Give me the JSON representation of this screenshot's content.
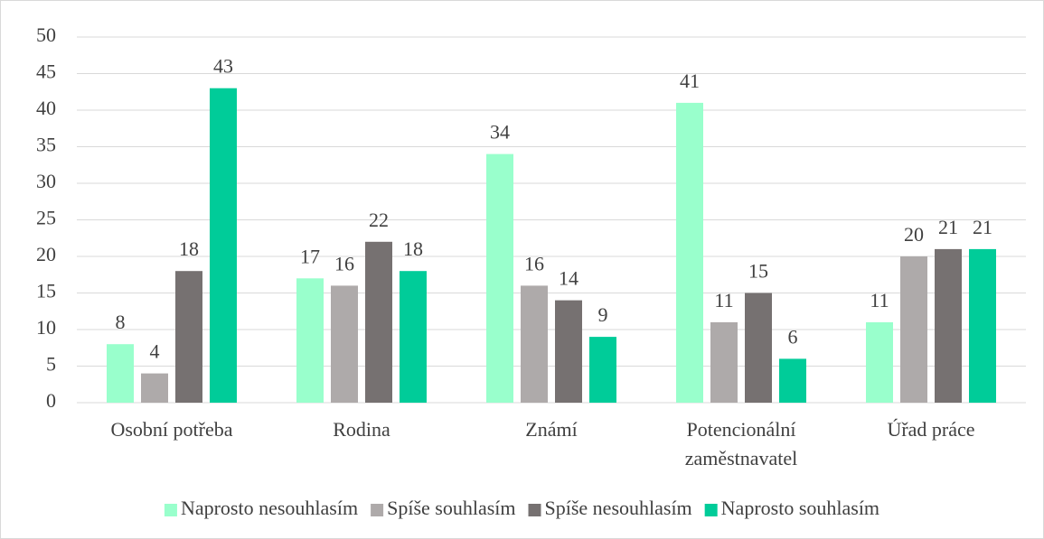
{
  "chart_data": {
    "type": "bar",
    "categories": [
      "Osobní potřeba",
      "Rodina",
      "Známí",
      "Potencionální zaměstnavatel",
      "Úřad práce"
    ],
    "series": [
      {
        "name": "Naprosto nesouhlasím",
        "color": "#99ffcc",
        "values": [
          8,
          17,
          34,
          41,
          11
        ]
      },
      {
        "name": "Spíše souhlasím",
        "color": "#aeaaaa",
        "values": [
          4,
          16,
          16,
          11,
          20
        ]
      },
      {
        "name": "Spíše nesouhlasím",
        "color": "#767171",
        "values": [
          18,
          22,
          14,
          15,
          21
        ]
      },
      {
        "name": "Naprosto souhlasím",
        "color": "#00cc99",
        "values": [
          43,
          18,
          9,
          6,
          21
        ]
      }
    ],
    "ylim": [
      0,
      50
    ],
    "yticks": [
      0,
      5,
      10,
      15,
      20,
      25,
      30,
      35,
      40,
      45,
      50
    ],
    "grid": true,
    "legend": "bottom",
    "data_labels": true
  }
}
